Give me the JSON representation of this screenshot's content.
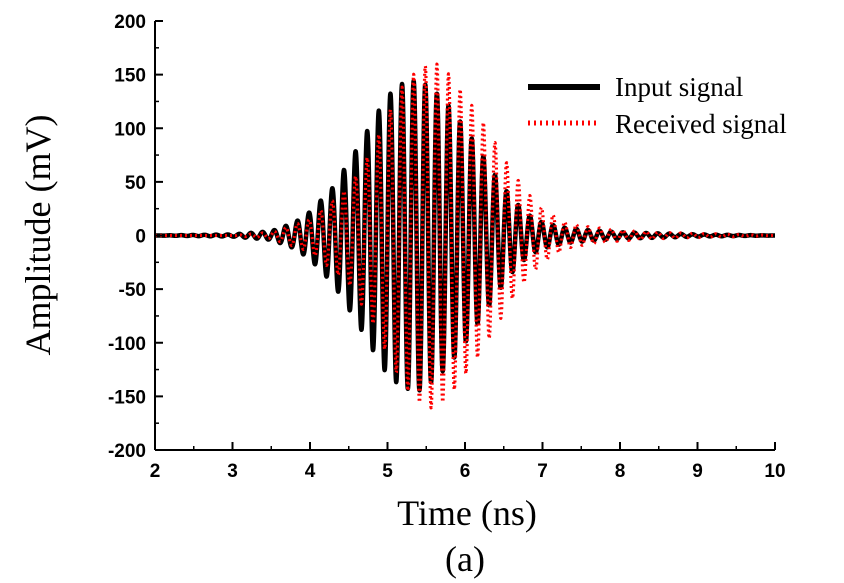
{
  "chart_data": {
    "type": "line",
    "title": "",
    "xlabel": "Time (ns)",
    "ylabel": "Amplitude (mV)",
    "caption": "(a)",
    "xlim": [
      2,
      10
    ],
    "ylim": [
      -200,
      200
    ],
    "xticks": [
      2,
      3,
      4,
      5,
      6,
      7,
      8,
      9,
      10
    ],
    "yticks": [
      200,
      150,
      100,
      50,
      0,
      -50,
      -100,
      -150,
      -200
    ],
    "grid": false,
    "legend_position": "top-right",
    "series": [
      {
        "name": "Input signal",
        "color": "#000000",
        "style": "solid",
        "carrier_period_ns": 0.15,
        "envelope": {
          "x": [
            2.0,
            3.0,
            3.5,
            3.8,
            4.0,
            4.3,
            4.6,
            4.9,
            5.0,
            5.2,
            5.4,
            5.6,
            5.8,
            6.0,
            6.2,
            6.4,
            6.6,
            6.8,
            7.0,
            7.3,
            7.6,
            8.0,
            8.5,
            9.0,
            10.0
          ],
          "y": [
            0,
            1,
            4,
            12,
            22,
            45,
            80,
            118,
            130,
            142,
            145,
            135,
            120,
            100,
            78,
            55,
            35,
            20,
            12,
            7,
            5,
            3,
            2,
            1,
            0
          ]
        }
      },
      {
        "name": "Received signal",
        "color": "#ff0000",
        "style": "dotted",
        "carrier_period_ns": 0.15,
        "envelope": {
          "x": [
            2.0,
            3.0,
            3.5,
            4.0,
            4.5,
            4.8,
            5.0,
            5.2,
            5.4,
            5.6,
            5.8,
            6.0,
            6.2,
            6.4,
            6.6,
            6.8,
            7.0,
            7.3,
            7.6,
            8.0,
            8.5,
            9.0,
            10.0
          ],
          "y": [
            0,
            0,
            3,
            15,
            45,
            80,
            112,
            140,
            155,
            162,
            150,
            130,
            110,
            85,
            60,
            40,
            25,
            12,
            8,
            5,
            3,
            2,
            0
          ]
        }
      }
    ]
  }
}
